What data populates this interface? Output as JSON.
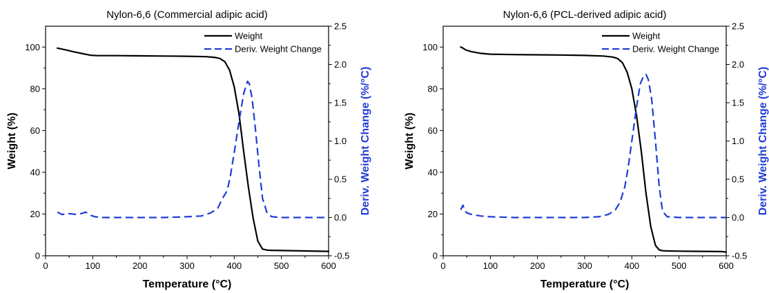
{
  "chart_data": [
    {
      "type": "line",
      "title": "Nylon-6,6 (Commercial adipic acid)",
      "xlabel": "Temperature (°C)",
      "ylabel": "Weight (%)",
      "y2label": "Deriv. Weight Change (%/°C)",
      "xlim": [
        0,
        600
      ],
      "ylim": [
        0,
        110
      ],
      "y2lim": [
        -0.5,
        2.5
      ],
      "xticks": [
        0,
        100,
        200,
        300,
        400,
        500,
        600
      ],
      "yticks": [
        0,
        20,
        40,
        60,
        80,
        100
      ],
      "y2ticks": [
        -0.5,
        0.0,
        0.5,
        1.0,
        1.5,
        2.0,
        2.5
      ],
      "legend_position": "top-right",
      "grid": false,
      "series": [
        {
          "name": "Weight",
          "axis": "left",
          "color": "#000000",
          "style": "solid",
          "x": [
            25,
            40,
            60,
            80,
            95,
            110,
            150,
            200,
            250,
            300,
            340,
            360,
            370,
            380,
            390,
            400,
            410,
            420,
            430,
            440,
            450,
            460,
            470,
            480,
            500,
            550,
            600
          ],
          "y": [
            99.5,
            98.8,
            97.7,
            96.8,
            96.1,
            95.9,
            95.9,
            95.8,
            95.7,
            95.6,
            95.4,
            95.0,
            94.5,
            93.0,
            89.0,
            81.0,
            68.0,
            50.0,
            33.0,
            18.0,
            7.0,
            3.2,
            2.7,
            2.6,
            2.5,
            2.3,
            2.1
          ]
        },
        {
          "name": "Deriv. Weight Change",
          "axis": "right",
          "color": "#1f3bd6",
          "style": "dashed",
          "x": [
            25,
            35,
            50,
            65,
            75,
            85,
            95,
            105,
            120,
            150,
            200,
            250,
            300,
            330,
            350,
            365,
            375,
            385,
            392,
            400,
            410,
            420,
            428,
            432,
            438,
            445,
            452,
            460,
            470,
            480,
            500,
            550,
            600
          ],
          "y": [
            0.07,
            0.04,
            0.05,
            0.04,
            0.05,
            0.07,
            0.03,
            0.01,
            0.0,
            0.0,
            0.0,
            0.0,
            0.01,
            0.02,
            0.06,
            0.12,
            0.25,
            0.35,
            0.55,
            0.85,
            1.25,
            1.62,
            1.78,
            1.75,
            1.55,
            1.15,
            0.7,
            0.25,
            0.05,
            0.01,
            0.0,
            0.0,
            0.0
          ]
        }
      ]
    },
    {
      "type": "line",
      "title": "Nylon-6,6 (PCL-derived adipic acid)",
      "xlabel": "Temperature (°C)",
      "ylabel": "Weight (%)",
      "y2label": "Deriv. Weight Change (%/°C)",
      "xlim": [
        0,
        600
      ],
      "ylim": [
        0,
        110
      ],
      "y2lim": [
        -0.5,
        2.5
      ],
      "xticks": [
        0,
        100,
        200,
        300,
        400,
        500,
        600
      ],
      "yticks": [
        0,
        20,
        40,
        60,
        80,
        100
      ],
      "y2ticks": [
        -0.5,
        0.0,
        0.5,
        1.0,
        1.5,
        2.0,
        2.5
      ],
      "legend_position": "top-right",
      "grid": false,
      "series": [
        {
          "name": "Weight",
          "axis": "left",
          "color": "#000000",
          "style": "solid",
          "x": [
            37,
            42,
            48,
            60,
            80,
            100,
            150,
            200,
            250,
            300,
            340,
            360,
            370,
            380,
            390,
            400,
            410,
            420,
            430,
            440,
            450,
            458,
            465,
            475,
            500,
            550,
            590,
            600
          ],
          "y": [
            100.0,
            99.5,
            98.6,
            97.8,
            97.0,
            96.6,
            96.4,
            96.3,
            96.2,
            96.0,
            95.7,
            95.2,
            94.5,
            92.5,
            88.0,
            80.0,
            67.0,
            50.0,
            30.0,
            14.0,
            5.0,
            2.8,
            2.4,
            2.3,
            2.2,
            2.1,
            2.0,
            1.8
          ]
        },
        {
          "name": "Deriv. Weight Change",
          "axis": "right",
          "color": "#1f3bd6",
          "style": "dashed",
          "x": [
            37,
            42,
            46,
            50,
            60,
            80,
            100,
            150,
            200,
            250,
            300,
            330,
            350,
            365,
            375,
            385,
            392,
            400,
            410,
            418,
            425,
            430,
            435,
            442,
            450,
            458,
            465,
            475,
            500,
            550,
            600
          ],
          "y": [
            0.1,
            0.16,
            0.09,
            0.06,
            0.04,
            0.02,
            0.01,
            0.0,
            0.0,
            0.0,
            0.0,
            0.01,
            0.04,
            0.1,
            0.2,
            0.4,
            0.65,
            1.0,
            1.45,
            1.75,
            1.85,
            1.87,
            1.8,
            1.55,
            1.0,
            0.4,
            0.08,
            0.01,
            0.0,
            0.0,
            0.0
          ]
        }
      ]
    }
  ]
}
